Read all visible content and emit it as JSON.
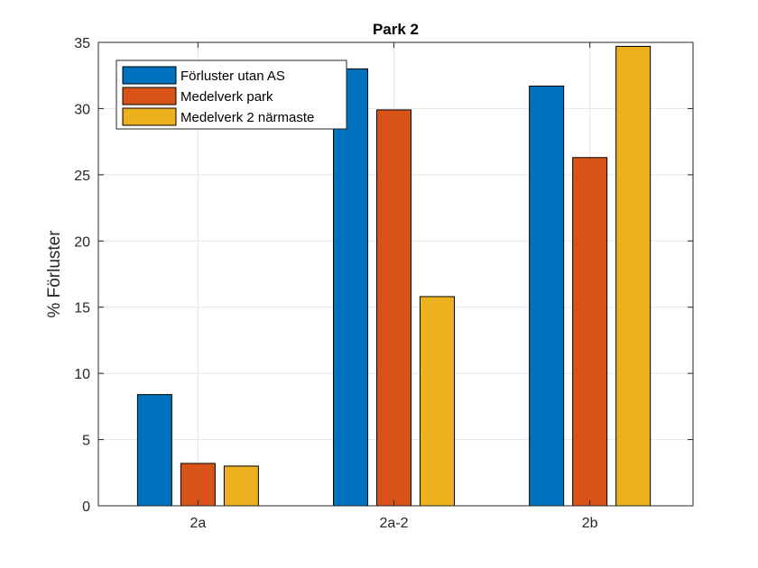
{
  "chart_data": {
    "type": "bar",
    "title": "Park 2",
    "xlabel": "",
    "ylabel": "% Förluster",
    "categories": [
      "2a",
      "2a-2",
      "2b"
    ],
    "series": [
      {
        "name": "Förluster utan AS",
        "color": "#0072BD",
        "values": [
          8.4,
          33.0,
          31.7
        ]
      },
      {
        "name": "Medelverk park",
        "color": "#D95319",
        "values": [
          3.2,
          29.9,
          26.3
        ]
      },
      {
        "name": "Medelverk 2 närmaste",
        "color": "#EDB120",
        "values": [
          3.0,
          15.8,
          34.7
        ]
      }
    ],
    "ylim": [
      0,
      35
    ],
    "yticks": [
      0,
      5,
      10,
      15,
      20,
      25,
      30,
      35
    ],
    "grid": true,
    "legend_position": "top-left"
  }
}
